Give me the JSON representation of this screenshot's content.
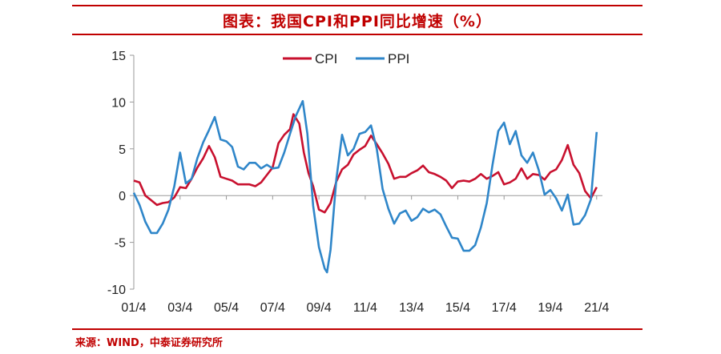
{
  "header": {
    "title": "图表：我国CPI和PPI同比增速（%）"
  },
  "footer": {
    "source": "来源：WIND，中泰证券研究所"
  },
  "colors": {
    "accent": "#c00000",
    "cpi": "#c8102e",
    "ppi": "#2f86c9"
  },
  "chart_data": {
    "type": "line",
    "title": "图表：我国CPI和PPI同比增速（%）",
    "xlabel": "",
    "ylabel": "",
    "ylim": [
      -10,
      15
    ],
    "yticks": [
      15,
      10,
      5,
      0,
      -5,
      -10
    ],
    "xlim": [
      2001.25,
      2021.5
    ],
    "xticks": [
      {
        "label": "01/4",
        "x": 2001.25
      },
      {
        "label": "03/4",
        "x": 2003.25
      },
      {
        "label": "05/4",
        "x": 2005.25
      },
      {
        "label": "07/4",
        "x": 2007.25
      },
      {
        "label": "09/4",
        "x": 2009.25
      },
      {
        "label": "11/4",
        "x": 2011.25
      },
      {
        "label": "13/4",
        "x": 2013.25
      },
      {
        "label": "15/4",
        "x": 2015.25
      },
      {
        "label": "17/4",
        "x": 2017.25
      },
      {
        "label": "19/4",
        "x": 2019.25
      },
      {
        "label": "21/4",
        "x": 2021.25
      }
    ],
    "grid": false,
    "legend": "top-center",
    "series": [
      {
        "name": "CPI",
        "points": [
          [
            2001.25,
            1.6
          ],
          [
            2001.5,
            1.4
          ],
          [
            2001.75,
            0.0
          ],
          [
            2002.0,
            -0.5
          ],
          [
            2002.25,
            -1.0
          ],
          [
            2002.5,
            -0.8
          ],
          [
            2002.75,
            -0.7
          ],
          [
            2003.0,
            -0.2
          ],
          [
            2003.25,
            0.9
          ],
          [
            2003.5,
            0.8
          ],
          [
            2003.75,
            1.8
          ],
          [
            2004.0,
            3.0
          ],
          [
            2004.25,
            4.0
          ],
          [
            2004.5,
            5.3
          ],
          [
            2004.75,
            4.1
          ],
          [
            2005.0,
            2.0
          ],
          [
            2005.25,
            1.8
          ],
          [
            2005.5,
            1.6
          ],
          [
            2005.75,
            1.2
          ],
          [
            2006.0,
            1.2
          ],
          [
            2006.25,
            1.2
          ],
          [
            2006.5,
            1.0
          ],
          [
            2006.75,
            1.4
          ],
          [
            2007.0,
            2.2
          ],
          [
            2007.25,
            3.0
          ],
          [
            2007.5,
            5.6
          ],
          [
            2007.75,
            6.5
          ],
          [
            2008.0,
            7.1
          ],
          [
            2008.15,
            8.7
          ],
          [
            2008.4,
            7.7
          ],
          [
            2008.6,
            4.6
          ],
          [
            2008.8,
            2.4
          ],
          [
            2009.0,
            1.0
          ],
          [
            2009.25,
            -1.5
          ],
          [
            2009.5,
            -1.8
          ],
          [
            2009.75,
            -0.8
          ],
          [
            2010.0,
            1.5
          ],
          [
            2010.25,
            2.8
          ],
          [
            2010.5,
            3.3
          ],
          [
            2010.75,
            4.4
          ],
          [
            2011.0,
            4.9
          ],
          [
            2011.25,
            5.3
          ],
          [
            2011.5,
            6.4
          ],
          [
            2011.75,
            5.5
          ],
          [
            2012.0,
            4.5
          ],
          [
            2012.25,
            3.4
          ],
          [
            2012.5,
            1.8
          ],
          [
            2012.75,
            2.0
          ],
          [
            2013.0,
            2.0
          ],
          [
            2013.25,
            2.4
          ],
          [
            2013.5,
            2.7
          ],
          [
            2013.75,
            3.2
          ],
          [
            2014.0,
            2.5
          ],
          [
            2014.25,
            2.3
          ],
          [
            2014.5,
            2.0
          ],
          [
            2014.75,
            1.6
          ],
          [
            2015.0,
            0.8
          ],
          [
            2015.25,
            1.5
          ],
          [
            2015.5,
            1.6
          ],
          [
            2015.75,
            1.5
          ],
          [
            2016.0,
            1.8
          ],
          [
            2016.25,
            2.3
          ],
          [
            2016.5,
            1.8
          ],
          [
            2016.75,
            2.1
          ],
          [
            2017.0,
            2.5
          ],
          [
            2017.25,
            1.2
          ],
          [
            2017.5,
            1.4
          ],
          [
            2017.75,
            1.8
          ],
          [
            2018.0,
            2.9
          ],
          [
            2018.25,
            1.8
          ],
          [
            2018.5,
            2.3
          ],
          [
            2018.75,
            2.2
          ],
          [
            2019.0,
            1.7
          ],
          [
            2019.25,
            2.5
          ],
          [
            2019.5,
            2.8
          ],
          [
            2019.75,
            3.8
          ],
          [
            2020.0,
            5.4
          ],
          [
            2020.25,
            3.3
          ],
          [
            2020.5,
            2.4
          ],
          [
            2020.75,
            0.5
          ],
          [
            2021.0,
            -0.3
          ],
          [
            2021.25,
            0.9
          ]
        ]
      },
      {
        "name": "PPI",
        "points": [
          [
            2001.25,
            0.3
          ],
          [
            2001.5,
            -1.0
          ],
          [
            2001.75,
            -2.8
          ],
          [
            2002.0,
            -4.0
          ],
          [
            2002.25,
            -4.0
          ],
          [
            2002.5,
            -3.0
          ],
          [
            2002.75,
            -1.5
          ],
          [
            2003.0,
            1.0
          ],
          [
            2003.25,
            4.6
          ],
          [
            2003.5,
            1.3
          ],
          [
            2003.75,
            1.8
          ],
          [
            2004.0,
            4.0
          ],
          [
            2004.25,
            5.7
          ],
          [
            2004.5,
            7.0
          ],
          [
            2004.75,
            8.4
          ],
          [
            2005.0,
            6.0
          ],
          [
            2005.25,
            5.8
          ],
          [
            2005.5,
            5.2
          ],
          [
            2005.75,
            3.1
          ],
          [
            2006.0,
            2.8
          ],
          [
            2006.25,
            3.5
          ],
          [
            2006.5,
            3.5
          ],
          [
            2006.75,
            2.9
          ],
          [
            2007.0,
            3.3
          ],
          [
            2007.25,
            2.9
          ],
          [
            2007.5,
            3.0
          ],
          [
            2007.75,
            4.6
          ],
          [
            2008.0,
            6.6
          ],
          [
            2008.25,
            8.5
          ],
          [
            2008.55,
            10.1
          ],
          [
            2008.75,
            6.6
          ],
          [
            2009.0,
            -1.1
          ],
          [
            2009.25,
            -5.5
          ],
          [
            2009.5,
            -7.8
          ],
          [
            2009.6,
            -8.2
          ],
          [
            2009.75,
            -5.8
          ],
          [
            2010.0,
            1.7
          ],
          [
            2010.25,
            6.5
          ],
          [
            2010.5,
            4.3
          ],
          [
            2010.75,
            5.0
          ],
          [
            2011.0,
            6.6
          ],
          [
            2011.25,
            6.8
          ],
          [
            2011.5,
            7.5
          ],
          [
            2011.75,
            5.0
          ],
          [
            2012.0,
            0.7
          ],
          [
            2012.25,
            -1.4
          ],
          [
            2012.5,
            -3.0
          ],
          [
            2012.75,
            -1.9
          ],
          [
            2013.0,
            -1.6
          ],
          [
            2013.25,
            -2.7
          ],
          [
            2013.5,
            -2.3
          ],
          [
            2013.75,
            -1.4
          ],
          [
            2014.0,
            -1.8
          ],
          [
            2014.25,
            -1.5
          ],
          [
            2014.5,
            -2.0
          ],
          [
            2014.75,
            -3.3
          ],
          [
            2015.0,
            -4.5
          ],
          [
            2015.25,
            -4.6
          ],
          [
            2015.5,
            -5.9
          ],
          [
            2015.75,
            -5.9
          ],
          [
            2016.0,
            -5.3
          ],
          [
            2016.25,
            -3.4
          ],
          [
            2016.5,
            -0.8
          ],
          [
            2016.75,
            3.3
          ],
          [
            2017.0,
            6.9
          ],
          [
            2017.25,
            7.8
          ],
          [
            2017.5,
            5.5
          ],
          [
            2017.75,
            6.9
          ],
          [
            2018.0,
            4.3
          ],
          [
            2018.25,
            3.5
          ],
          [
            2018.5,
            4.6
          ],
          [
            2018.75,
            2.7
          ],
          [
            2019.0,
            0.1
          ],
          [
            2019.25,
            0.6
          ],
          [
            2019.5,
            -0.3
          ],
          [
            2019.75,
            -1.6
          ],
          [
            2020.0,
            0.1
          ],
          [
            2020.25,
            -3.1
          ],
          [
            2020.5,
            -3.0
          ],
          [
            2020.75,
            -2.1
          ],
          [
            2021.0,
            -0.4
          ],
          [
            2021.25,
            6.8
          ]
        ]
      }
    ]
  }
}
